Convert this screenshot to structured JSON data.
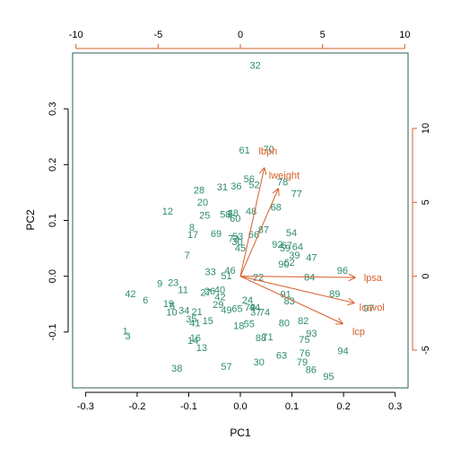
{
  "chart_data": {
    "type": "scatter",
    "title": "",
    "xlabel": "PC1",
    "ylabel": "PC2",
    "xlim": [
      -0.325,
      0.325
    ],
    "ylim": [
      -0.2,
      0.4
    ],
    "x_ticks": [
      -0.3,
      -0.2,
      -0.1,
      0.0,
      0.1,
      0.2,
      0.3
    ],
    "y_ticks": [
      -0.1,
      0.0,
      0.1,
      0.2,
      0.3
    ],
    "secondary_x_ticks": [
      -10,
      -5,
      0,
      5,
      10
    ],
    "secondary_y_ticks": [
      -5,
      0,
      5,
      10
    ],
    "secondary_xlim": [
      -10.2,
      10.2
    ],
    "secondary_ylim": [
      -7.55,
      15.1
    ],
    "points_color": "#2e8b6e",
    "arrows_color": "#d55f2a",
    "box_color": "#2f5f57",
    "points": [
      {
        "label": "1",
        "x": -0.223,
        "y": -0.098
      },
      {
        "label": "3",
        "x": -0.218,
        "y": -0.107
      },
      {
        "label": "42",
        "x": -0.213,
        "y": -0.031
      },
      {
        "label": "6",
        "x": -0.184,
        "y": -0.042
      },
      {
        "label": "9",
        "x": -0.156,
        "y": -0.013
      },
      {
        "label": "23",
        "x": -0.13,
        "y": -0.011
      },
      {
        "label": "11",
        "x": -0.111,
        "y": -0.024
      },
      {
        "label": "19",
        "x": -0.139,
        "y": -0.049
      },
      {
        "label": "5",
        "x": -0.132,
        "y": -0.053
      },
      {
        "label": "10",
        "x": -0.133,
        "y": -0.064
      },
      {
        "label": "34",
        "x": -0.109,
        "y": -0.061
      },
      {
        "label": "21",
        "x": -0.084,
        "y": -0.063
      },
      {
        "label": "35",
        "x": -0.095,
        "y": -0.076
      },
      {
        "label": "41",
        "x": -0.088,
        "y": -0.083
      },
      {
        "label": "15",
        "x": -0.063,
        "y": -0.079
      },
      {
        "label": "14",
        "x": -0.092,
        "y": -0.115
      },
      {
        "label": "16",
        "x": -0.087,
        "y": -0.11
      },
      {
        "label": "13",
        "x": -0.075,
        "y": -0.128
      },
      {
        "label": "38",
        "x": -0.123,
        "y": -0.165
      },
      {
        "label": "12",
        "x": -0.141,
        "y": 0.117
      },
      {
        "label": "28",
        "x": -0.08,
        "y": 0.155
      },
      {
        "label": "20",
        "x": -0.073,
        "y": 0.133
      },
      {
        "label": "25",
        "x": -0.069,
        "y": 0.11
      },
      {
        "label": "8",
        "x": -0.094,
        "y": 0.088
      },
      {
        "label": "17",
        "x": -0.092,
        "y": 0.075
      },
      {
        "label": "7",
        "x": -0.103,
        "y": 0.038
      },
      {
        "label": "69",
        "x": -0.047,
        "y": 0.077
      },
      {
        "label": "31",
        "x": -0.035,
        "y": 0.16
      },
      {
        "label": "36",
        "x": -0.008,
        "y": 0.162
      },
      {
        "label": "56",
        "x": 0.017,
        "y": 0.175
      },
      {
        "label": "52",
        "x": 0.027,
        "y": 0.164
      },
      {
        "label": "58",
        "x": -0.029,
        "y": 0.111
      },
      {
        "label": "2",
        "x": -0.02,
        "y": 0.113
      },
      {
        "label": "48",
        "x": -0.014,
        "y": 0.114
      },
      {
        "label": "60",
        "x": -0.01,
        "y": 0.104
      },
      {
        "label": "48",
        "x": 0.021,
        "y": 0.117
      },
      {
        "label": "53",
        "x": -0.005,
        "y": 0.072
      },
      {
        "label": "73",
        "x": -0.013,
        "y": 0.068
      },
      {
        "label": "30",
        "x": -0.006,
        "y": 0.062
      },
      {
        "label": "45",
        "x": 0.0,
        "y": 0.051
      },
      {
        "label": "66",
        "x": 0.026,
        "y": 0.075
      },
      {
        "label": "87",
        "x": 0.045,
        "y": 0.084
      },
      {
        "label": "68",
        "x": 0.069,
        "y": 0.124
      },
      {
        "label": "78",
        "x": 0.082,
        "y": 0.169
      },
      {
        "label": "77",
        "x": 0.109,
        "y": 0.148
      },
      {
        "label": "61",
        "x": 0.008,
        "y": 0.226
      },
      {
        "label": "70",
        "x": 0.055,
        "y": 0.228
      },
      {
        "label": "32",
        "x": 0.029,
        "y": 0.378
      },
      {
        "label": "33",
        "x": -0.058,
        "y": 0.008
      },
      {
        "label": "46",
        "x": -0.02,
        "y": 0.011
      },
      {
        "label": "51",
        "x": -0.027,
        "y": 0.001
      },
      {
        "label": "22",
        "x": 0.035,
        "y": -0.001
      },
      {
        "label": "26",
        "x": -0.059,
        "y": -0.026
      },
      {
        "label": "27",
        "x": -0.067,
        "y": -0.029
      },
      {
        "label": "40",
        "x": -0.04,
        "y": -0.024
      },
      {
        "label": "42",
        "x": -0.039,
        "y": -0.037
      },
      {
        "label": "29",
        "x": -0.043,
        "y": -0.05
      },
      {
        "label": "49",
        "x": -0.027,
        "y": -0.06
      },
      {
        "label": "65",
        "x": -0.006,
        "y": -0.058
      },
      {
        "label": "24",
        "x": 0.014,
        "y": -0.042
      },
      {
        "label": "79",
        "x": 0.019,
        "y": -0.055
      },
      {
        "label": "44",
        "x": 0.028,
        "y": -0.055
      },
      {
        "label": "37",
        "x": 0.03,
        "y": -0.064
      },
      {
        "label": "74",
        "x": 0.047,
        "y": -0.064
      },
      {
        "label": "18",
        "x": -0.003,
        "y": -0.088
      },
      {
        "label": "55",
        "x": 0.017,
        "y": -0.085
      },
      {
        "label": "88",
        "x": 0.04,
        "y": -0.11
      },
      {
        "label": "71",
        "x": 0.053,
        "y": -0.108
      },
      {
        "label": "57",
        "x": -0.027,
        "y": -0.161
      },
      {
        "label": "30",
        "x": 0.036,
        "y": -0.153
      },
      {
        "label": "63",
        "x": 0.08,
        "y": -0.141
      },
      {
        "label": "75",
        "x": 0.124,
        "y": -0.113
      },
      {
        "label": "76",
        "x": 0.125,
        "y": -0.137
      },
      {
        "label": "79",
        "x": 0.12,
        "y": -0.153
      },
      {
        "label": "86",
        "x": 0.137,
        "y": -0.167
      },
      {
        "label": "95",
        "x": 0.171,
        "y": -0.179
      },
      {
        "label": "94",
        "x": 0.199,
        "y": -0.133
      },
      {
        "label": "93",
        "x": 0.138,
        "y": -0.102
      },
      {
        "label": "80",
        "x": 0.085,
        "y": -0.083
      },
      {
        "label": "82",
        "x": 0.122,
        "y": -0.079
      },
      {
        "label": "83",
        "x": 0.095,
        "y": -0.044
      },
      {
        "label": "91",
        "x": 0.088,
        "y": -0.032
      },
      {
        "label": "84",
        "x": 0.134,
        "y": -0.001
      },
      {
        "label": "89",
        "x": 0.183,
        "y": -0.031
      },
      {
        "label": "96",
        "x": 0.198,
        "y": 0.011
      },
      {
        "label": "97",
        "x": 0.249,
        "y": -0.057
      },
      {
        "label": "92",
        "x": 0.072,
        "y": 0.057
      },
      {
        "label": "67",
        "x": 0.09,
        "y": 0.056
      },
      {
        "label": "64",
        "x": 0.111,
        "y": 0.053
      },
      {
        "label": "59",
        "x": 0.087,
        "y": 0.051
      },
      {
        "label": "39",
        "x": 0.105,
        "y": 0.038
      },
      {
        "label": "47",
        "x": 0.138,
        "y": 0.034
      },
      {
        "label": "54",
        "x": 0.099,
        "y": 0.078
      },
      {
        "label": "90",
        "x": 0.084,
        "y": 0.022
      },
      {
        "label": "62",
        "x": 0.095,
        "y": 0.025
      }
    ],
    "arrows": [
      {
        "label": "lbph",
        "x": 1.45,
        "y": 7.3
      },
      {
        "label": "lweight",
        "x": 2.3,
        "y": 5.9
      },
      {
        "label": "lpsa",
        "x": 6.95,
        "y": -0.08
      },
      {
        "label": "lcavol",
        "x": 6.9,
        "y": -1.8
      },
      {
        "label": "lcp",
        "x": 6.2,
        "y": -3.2
      }
    ]
  }
}
